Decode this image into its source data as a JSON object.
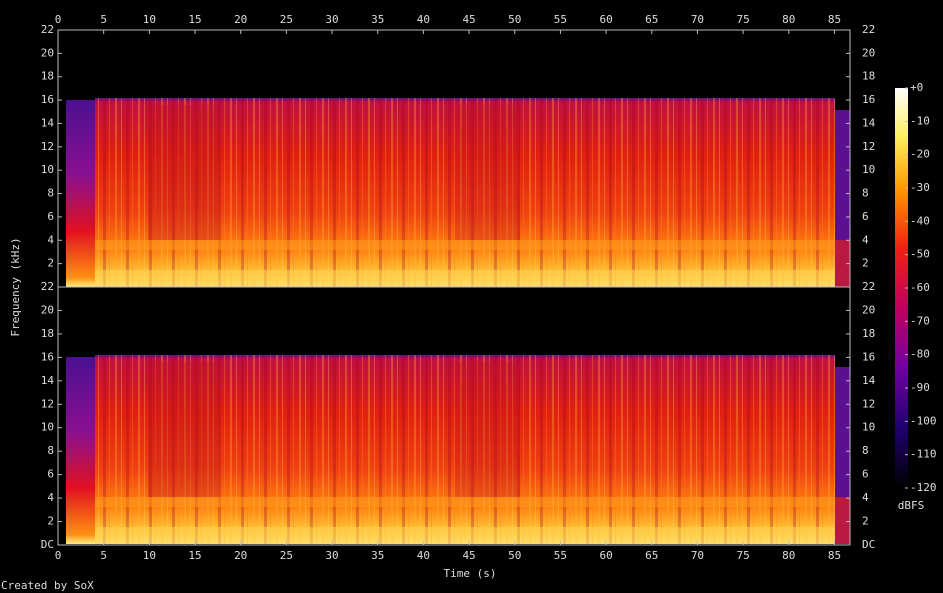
{
  "chart_data": {
    "type": "spectrogram",
    "xlabel": "Time (s)",
    "ylabel": "Frequency (kHz)",
    "xlim": [
      0,
      86.7
    ],
    "xticks": [
      0,
      5,
      10,
      15,
      20,
      25,
      30,
      35,
      40,
      45,
      50,
      55,
      60,
      65,
      70,
      75,
      80,
      85
    ],
    "ylim": [
      0,
      22
    ],
    "yticks": [
      {
        "value": 0,
        "label": "DC"
      },
      2,
      4,
      6,
      8,
      10,
      12,
      14,
      16,
      18,
      20,
      22
    ],
    "colorbar": {
      "label": "dBFS",
      "lim": [
        -120,
        0
      ],
      "ticks": [
        {
          "value": 0,
          "label": "+0"
        },
        -10,
        -20,
        -30,
        -40,
        -50,
        -60,
        -70,
        -80,
        -90,
        -100,
        -110,
        -120
      ]
    },
    "footer": "Created by SoX"
  }
}
